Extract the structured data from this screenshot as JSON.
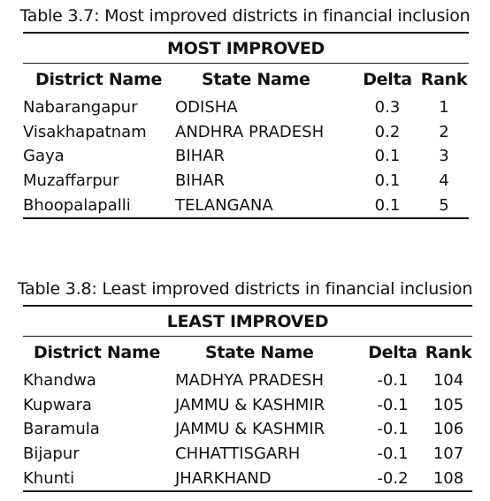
{
  "tables": [
    {
      "caption": "Table 3.7: Most improved districts in financial inclusion",
      "group_header": "MOST IMPROVED",
      "columns": [
        "District Name",
        "State Name",
        "Delta",
        "Rank"
      ],
      "rows": [
        [
          "Nabarangapur",
          "ODISHA",
          "0.3",
          "1"
        ],
        [
          "Visakhapatnam",
          "ANDHRA PRADESH",
          "0.2",
          "2"
        ],
        [
          "Gaya",
          "BIHAR",
          "0.1",
          "3"
        ],
        [
          "Muzaffarpur",
          "BIHAR",
          "0.1",
          "4"
        ],
        [
          "Bhoopalapalli",
          "TELANGANA",
          "0.1",
          "5"
        ]
      ]
    },
    {
      "caption": "Table 3.8: Least improved districts in financial inclusion",
      "group_header": "LEAST IMPROVED",
      "columns": [
        "District Name",
        "State Name",
        "Delta",
        "Rank"
      ],
      "rows": [
        [
          "Khandwa",
          "MADHYA PRADESH",
          "-0.1",
          "104"
        ],
        [
          "Kupwara",
          "JAMMU & KASHMIR",
          "-0.1",
          "105"
        ],
        [
          "Baramula",
          "JAMMU & KASHMIR",
          "-0.1",
          "106"
        ],
        [
          "Bijapur",
          "CHHATTISGARH",
          "-0.1",
          "107"
        ],
        [
          "Khunti",
          "JHARKHAND",
          "-0.2",
          "108"
        ]
      ]
    }
  ]
}
